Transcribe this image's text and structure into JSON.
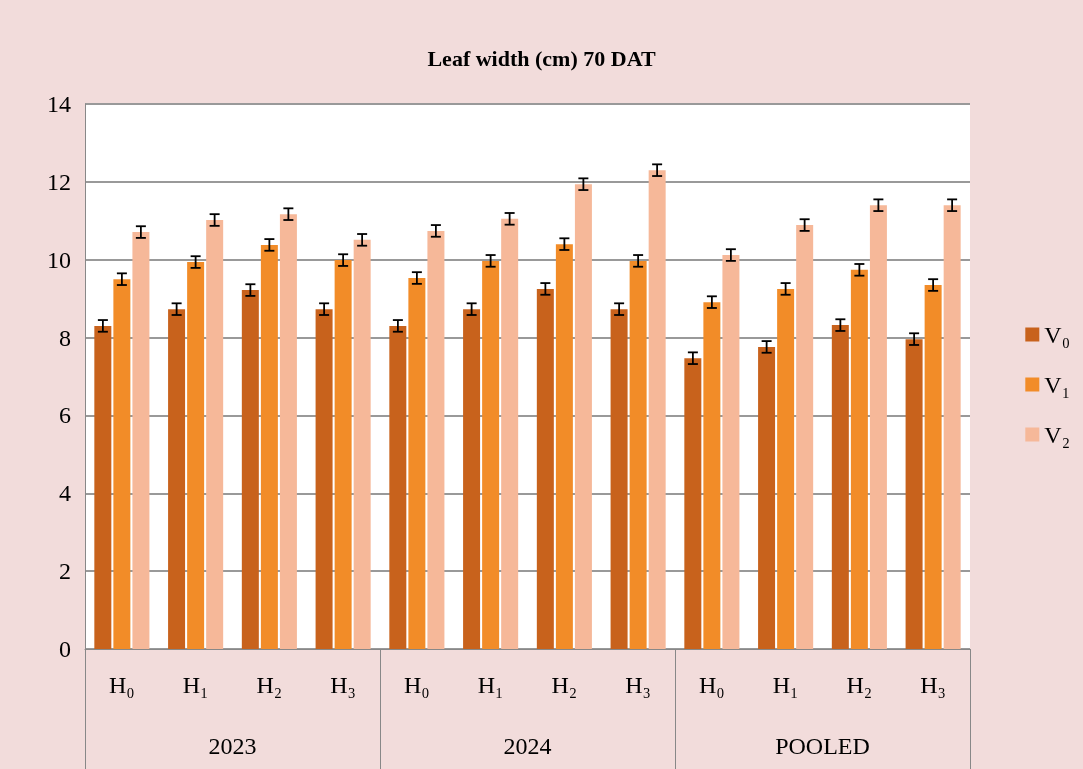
{
  "chart_data": {
    "type": "bar",
    "title": "Leaf width (cm) 70 DAT",
    "categories": [
      "H₀",
      "H₁",
      "H₂",
      "H₃",
      "H₀",
      "H₁",
      "H₂",
      "H₃",
      "H₀",
      "H₁",
      "H₂",
      "H₃"
    ],
    "annotations": [
      "2023",
      "2024",
      "POOLED"
    ],
    "series": [
      {
        "name": "V₀",
        "color": "#c8621c",
        "values": [
          8.3,
          8.73,
          9.22,
          8.73,
          8.3,
          8.73,
          9.25,
          8.73,
          7.47,
          7.76,
          8.32,
          7.96
        ],
        "errors": [
          0.15,
          0.15,
          0.15,
          0.15,
          0.15,
          0.15,
          0.15,
          0.15,
          0.15,
          0.15,
          0.15,
          0.15
        ]
      },
      {
        "name": "V₁",
        "color": "#f28c28",
        "values": [
          9.5,
          9.94,
          10.38,
          9.99,
          9.53,
          9.97,
          10.4,
          9.97,
          8.91,
          9.25,
          9.74,
          9.35
        ],
        "errors": [
          0.15,
          0.15,
          0.15,
          0.15,
          0.15,
          0.15,
          0.15,
          0.15,
          0.15,
          0.15,
          0.15,
          0.15
        ]
      },
      {
        "name": "V₂",
        "color": "#f6b899",
        "values": [
          10.71,
          11.02,
          11.17,
          10.51,
          10.74,
          11.05,
          11.94,
          12.3,
          10.12,
          10.89,
          11.4,
          11.4
        ],
        "errors": [
          0.15,
          0.15,
          0.15,
          0.15,
          0.15,
          0.15,
          0.15,
          0.15,
          0.15,
          0.15,
          0.15,
          0.15
        ]
      }
    ],
    "ylim": [
      0,
      14
    ],
    "yticks": [
      0,
      2,
      4,
      6,
      8,
      10,
      12,
      14
    ],
    "grid": "y",
    "legend": "right"
  }
}
